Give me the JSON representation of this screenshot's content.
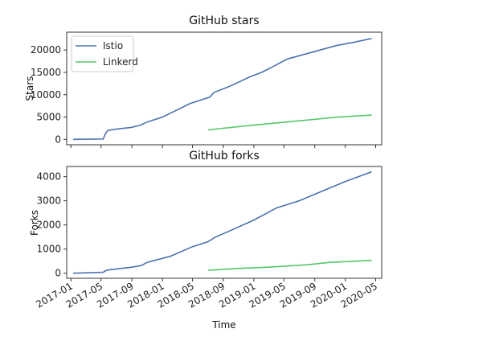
{
  "chart_data": [
    {
      "type": "line",
      "title": "GitHub stars",
      "xlabel": "",
      "ylabel": "Stars",
      "xlim": [
        "2016-12-15",
        "2020-05-25"
      ],
      "ylim": [
        -1200,
        24000
      ],
      "yticks": [
        "0",
        "5000",
        "10000",
        "15000",
        "20000"
      ],
      "legend": "top-left",
      "grid": false,
      "series": [
        {
          "name": "Istio",
          "color": "#4c72b0",
          "points": [
            [
              "2017-01-10",
              0
            ],
            [
              "2017-03-01",
              40
            ],
            [
              "2017-05-10",
              100
            ],
            [
              "2017-05-18",
              1200
            ],
            [
              "2017-05-28",
              2000
            ],
            [
              "2017-07-01",
              2300
            ],
            [
              "2017-09-01",
              2700
            ],
            [
              "2017-10-05",
              3200
            ],
            [
              "2017-11-01",
              3900
            ],
            [
              "2018-01-01",
              5000
            ],
            [
              "2018-03-01",
              6600
            ],
            [
              "2018-04-20",
              8000
            ],
            [
              "2018-07-10",
              9500
            ],
            [
              "2018-07-15",
              9800
            ],
            [
              "2018-07-25",
              10500
            ],
            [
              "2018-10-01",
              12000
            ],
            [
              "2018-12-15",
              14000
            ],
            [
              "2019-02-01",
              15000
            ],
            [
              "2019-03-15",
              16200
            ],
            [
              "2019-05-15",
              18000
            ],
            [
              "2019-08-01",
              19200
            ],
            [
              "2019-11-25",
              21000
            ],
            [
              "2020-02-01",
              21700
            ],
            [
              "2020-04-15",
              22600
            ]
          ]
        },
        {
          "name": "Linkerd",
          "color": "#55c667",
          "points": [
            [
              "2018-07-03",
              2100
            ],
            [
              "2018-08-15",
              2400
            ],
            [
              "2019-01-01",
              3200
            ],
            [
              "2019-06-01",
              4000
            ],
            [
              "2019-12-01",
              5000
            ],
            [
              "2020-04-15",
              5450
            ]
          ]
        }
      ]
    },
    {
      "type": "line",
      "title": "GitHub forks",
      "xlabel": "Time",
      "ylabel": "Forks",
      "xlim": [
        "2016-12-15",
        "2020-05-25"
      ],
      "ylim": [
        -210,
        4420
      ],
      "yticks": [
        "0",
        "1000",
        "2000",
        "3000",
        "4000"
      ],
      "xticks": [
        "2017-01",
        "2017-05",
        "2017-09",
        "2018-01",
        "2018-05",
        "2018-09",
        "2019-01",
        "2019-05",
        "2019-09",
        "2020-01",
        "2020-05"
      ],
      "grid": false,
      "series": [
        {
          "name": "Istio",
          "color": "#4c72b0",
          "points": [
            [
              "2017-01-10",
              0
            ],
            [
              "2017-05-10",
              40
            ],
            [
              "2017-05-25",
              130
            ],
            [
              "2017-09-01",
              250
            ],
            [
              "2017-10-10",
              320
            ],
            [
              "2017-11-01",
              450
            ],
            [
              "2018-02-01",
              700
            ],
            [
              "2018-05-01",
              1100
            ],
            [
              "2018-07-01",
              1300
            ],
            [
              "2018-08-01",
              1500
            ],
            [
              "2018-09-15",
              1700
            ],
            [
              "2019-01-01",
              2200
            ],
            [
              "2019-04-01",
              2700
            ],
            [
              "2019-07-01",
              3000
            ],
            [
              "2019-10-01",
              3400
            ],
            [
              "2020-01-01",
              3800
            ],
            [
              "2020-04-15",
              4200
            ]
          ]
        },
        {
          "name": "Linkerd",
          "color": "#55c667",
          "points": [
            [
              "2018-07-03",
              120
            ],
            [
              "2018-11-01",
              200
            ],
            [
              "2019-03-01",
              250
            ],
            [
              "2019-08-01",
              350
            ],
            [
              "2019-11-01",
              450
            ],
            [
              "2020-01-01",
              480
            ],
            [
              "2020-04-15",
              530
            ]
          ]
        }
      ]
    }
  ]
}
